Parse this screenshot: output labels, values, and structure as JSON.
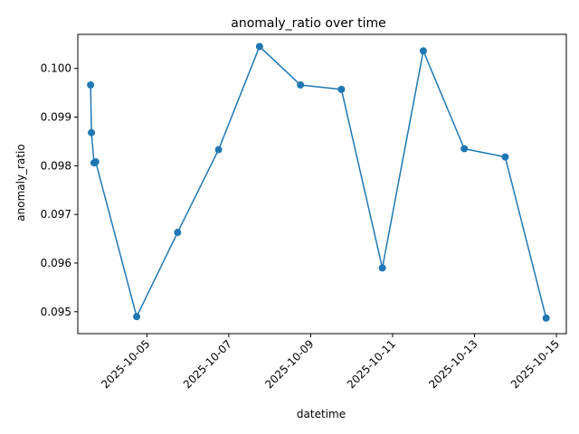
{
  "chart_data": {
    "type": "line",
    "title": "anomaly_ratio over time",
    "xlabel": "datetime",
    "ylabel": "anomaly_ratio",
    "grid": false,
    "legend": "none",
    "color": "#1f77b4",
    "x_ticks": [
      "2025-10-05",
      "2025-10-07",
      "2025-10-09",
      "2025-10-11",
      "2025-10-13",
      "2025-10-15"
    ],
    "y_ticks": [
      "0.095",
      "0.096",
      "0.097",
      "0.098",
      "0.099",
      "0.100"
    ],
    "ylim": [
      0.09455,
      0.1007
    ],
    "xlim": [
      "2025-10-03 07:30",
      "2025-10-15 05:50"
    ],
    "series": [
      {
        "x": [
          "2025-10-03 15:00",
          "2025-10-03 15:30",
          "2025-10-03 17:00",
          "2025-10-03 18:00",
          "2025-10-04 18:00",
          "2025-10-05 18:00",
          "2025-10-06 18:00",
          "2025-10-07 18:00",
          "2025-10-08 18:00",
          "2025-10-09 18:00",
          "2025-10-10 18:00",
          "2025-10-11 18:00",
          "2025-10-12 18:00",
          "2025-10-13 18:00",
          "2025-10-14 18:00"
        ],
        "values": [
          0.09966,
          0.09868,
          0.09806,
          0.09808,
          0.0949,
          0.09663,
          0.09833,
          0.10045,
          0.09966,
          0.09957,
          0.0959,
          0.10036,
          0.09835,
          0.09818,
          0.09487
        ]
      }
    ]
  }
}
